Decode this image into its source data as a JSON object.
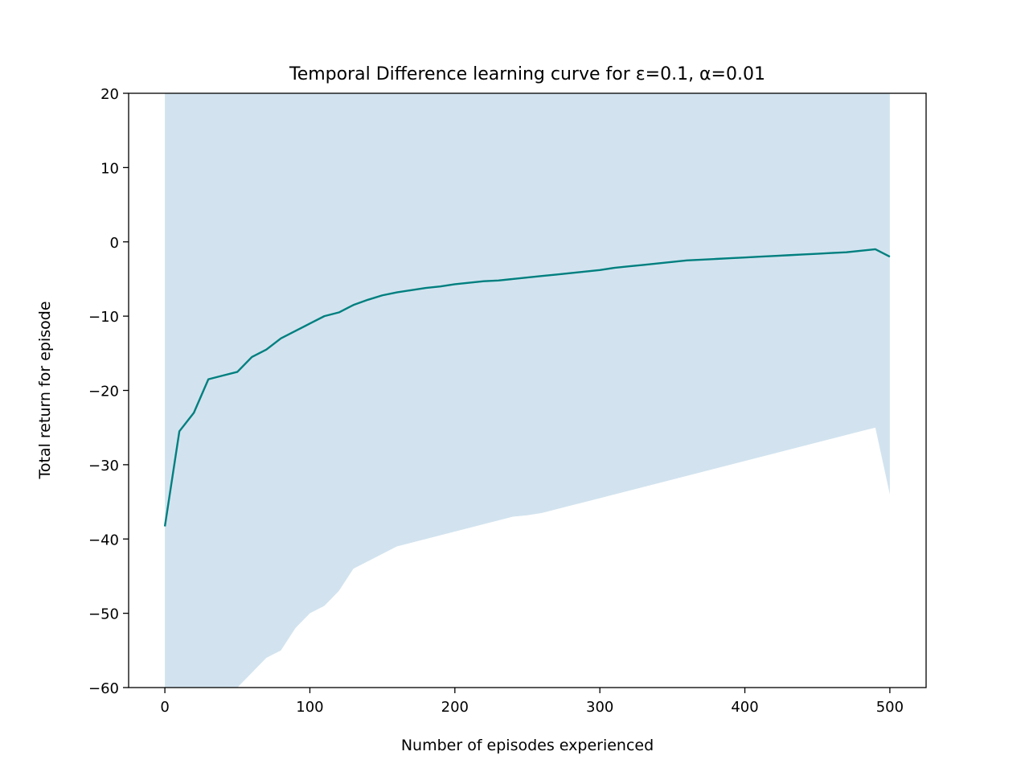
{
  "chart_data": {
    "type": "line",
    "title": "Temporal Difference learning curve for ε=0.1, α=0.01",
    "xlabel": "Number of episodes experienced",
    "ylabel": "Total return for episode",
    "xlim": [
      -25,
      525
    ],
    "ylim": [
      -60,
      20
    ],
    "x_ticks": [
      0,
      100,
      200,
      300,
      400,
      500
    ],
    "y_ticks": [
      -60,
      -50,
      -40,
      -30,
      -20,
      -10,
      0,
      10,
      20
    ],
    "x_tick_labels": [
      "0",
      "100",
      "200",
      "300",
      "400",
      "500"
    ],
    "y_tick_labels": [
      "−60",
      "−50",
      "−40",
      "−30",
      "−20",
      "−10",
      "0",
      "10",
      "20"
    ],
    "grid": false,
    "legend": "none",
    "series": [
      {
        "x": [
          0,
          10,
          20,
          30,
          40,
          50,
          60,
          70,
          80,
          90,
          100,
          110,
          120,
          130,
          140,
          150,
          160,
          170,
          180,
          190,
          200,
          210,
          220,
          230,
          240,
          250,
          260,
          270,
          280,
          290,
          300,
          310,
          320,
          330,
          340,
          350,
          360,
          370,
          380,
          390,
          400,
          410,
          420,
          430,
          440,
          450,
          460,
          470,
          480,
          490,
          500
        ],
        "values": [
          -38.3,
          -25.5,
          -23.0,
          -18.5,
          -18.0,
          -17.5,
          -15.5,
          -14.5,
          -13.0,
          -12.0,
          -11.0,
          -10.0,
          -9.5,
          -8.5,
          -7.8,
          -7.2,
          -6.8,
          -6.5,
          -6.2,
          -6.0,
          -5.7,
          -5.5,
          -5.3,
          -5.2,
          -5.0,
          -4.8,
          -4.6,
          -4.4,
          -4.2,
          -4.0,
          -3.8,
          -3.5,
          -3.3,
          -3.1,
          -2.9,
          -2.7,
          -2.5,
          -2.4,
          -2.3,
          -2.2,
          -2.1,
          -2.0,
          -1.9,
          -1.8,
          -1.7,
          -1.6,
          -1.5,
          -1.4,
          -1.2,
          -1.0,
          -2.0
        ],
        "color": "#007f7f"
      }
    ],
    "band": {
      "upper": 20,
      "lower": [
        -60,
        -60,
        -60,
        -60,
        -60,
        -60,
        -58,
        -56,
        -55,
        -52,
        -50,
        -49,
        -47,
        -44,
        -43,
        -42,
        -41,
        -40.5,
        -40,
        -39.5,
        -39,
        -38.5,
        -38,
        -37.5,
        -37,
        -36.8,
        -36.5,
        -36,
        -35.5,
        -35,
        -34.5,
        -34,
        -33.5,
        -33,
        -32.5,
        -32,
        -31.5,
        -31,
        -30.5,
        -30,
        -29.5,
        -29,
        -28.5,
        -28,
        -27.5,
        -27,
        -26.5,
        -26,
        -25.5,
        -25,
        -34
      ],
      "color": "#d2e3ef"
    }
  }
}
